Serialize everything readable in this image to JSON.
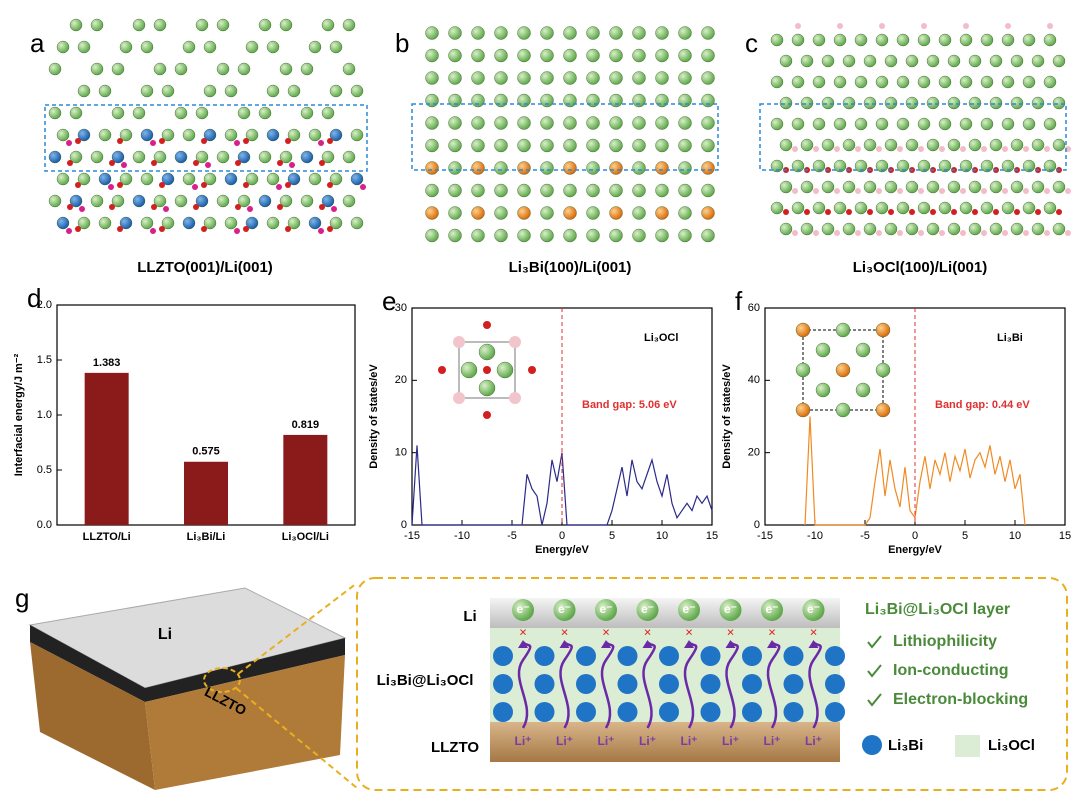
{
  "structures": [
    {
      "panel": "a",
      "caption": "LLZTO(001)/Li(001)"
    },
    {
      "panel": "b",
      "caption": "Li₃Bi(100)/Li(001)"
    },
    {
      "panel": "c",
      "caption": "Li₃OCl(100)/Li(001)"
    }
  ],
  "chart_data": [
    {
      "type": "bar",
      "panel": "d",
      "y_label": "Interfacial energy/J m⁻²",
      "categories": [
        "LLZTO/Li",
        "Li₃Bi/Li",
        "Li₃OCl/Li"
      ],
      "values": [
        1.383,
        0.575,
        0.819
      ],
      "color": "#8b1a1a",
      "ylim": [
        0,
        2.0
      ],
      "yticks": [
        {
          "value": 0,
          "label": "0.0"
        },
        0.5,
        {
          "value": 1.0,
          "label": "1.0"
        },
        1.5,
        {
          "value": 2.0,
          "label": "2.0"
        }
      ]
    },
    {
      "type": "line",
      "panel": "e",
      "x_label": "Energy/eV",
      "y_label": "Density of states/eV",
      "annotations": [
        "Li₃OCl",
        "Band gap: 5.06 eV"
      ],
      "color": "#2a2a8a",
      "x": [
        -15,
        -14.5,
        -14,
        -13.5,
        -13,
        -12.5,
        -12,
        -11.5,
        -11,
        -10.5,
        -10,
        -9.5,
        -9,
        -8.5,
        -8,
        -7.5,
        -7,
        -6.5,
        -6,
        -5.5,
        -5,
        -4.5,
        -4,
        -3.5,
        -3,
        -2.5,
        -2,
        -1.5,
        -1,
        -0.5,
        0,
        0.5,
        1,
        1.5,
        2,
        2.5,
        3,
        3.5,
        4,
        4.5,
        5,
        5.5,
        6,
        6.5,
        7,
        7.5,
        8,
        8.5,
        9,
        9.5,
        10,
        10.5,
        11,
        11.5,
        12,
        12.5,
        13,
        13.5,
        14,
        14.5,
        15
      ],
      "values": [
        0,
        11,
        0,
        0,
        0,
        0,
        0,
        0,
        0,
        0,
        0,
        0,
        0,
        0,
        0,
        0,
        0,
        0,
        0,
        0,
        0,
        0,
        0,
        7,
        5,
        4,
        0,
        3,
        9,
        6,
        10,
        0,
        0,
        0,
        0,
        0,
        0,
        0,
        0,
        0,
        2,
        5,
        8,
        4,
        9,
        6,
        5,
        7,
        9,
        6,
        4,
        7,
        3,
        1,
        2,
        3,
        2,
        4,
        3,
        4,
        2
      ],
      "xlim": [
        -15,
        15
      ],
      "xticks": [
        -15,
        -10,
        -5,
        0,
        5,
        10,
        15
      ],
      "ylim": [
        0,
        30
      ],
      "yticks": [
        0,
        10,
        20,
        30
      ]
    },
    {
      "type": "line",
      "panel": "f",
      "x_label": "Energy/eV",
      "y_label": "Density of states/eV",
      "annotations": [
        "Li₃Bi",
        "Band gap: 0.44 eV"
      ],
      "color": "#f08a24",
      "x": [
        -11,
        -10.5,
        -10,
        -9.5,
        -9,
        -8.5,
        -8,
        -7.5,
        -7,
        -6.5,
        -6,
        -5.5,
        -5,
        -4.5,
        -4,
        -3.5,
        -3,
        -2.5,
        -2,
        -1.5,
        -1,
        -0.5,
        0,
        0.5,
        1,
        1.5,
        2,
        2.5,
        3,
        3.5,
        4,
        4.5,
        5,
        5.5,
        6,
        6.5,
        7,
        7.5,
        8,
        8.5,
        9,
        9.5,
        10,
        10.5,
        11
      ],
      "values": [
        0,
        30,
        0,
        0,
        0,
        0,
        0,
        0,
        0,
        0,
        0,
        0,
        0,
        2,
        12,
        21,
        8,
        18,
        10,
        5,
        16,
        4,
        2,
        12,
        19,
        10,
        18,
        14,
        20,
        12,
        19,
        15,
        21,
        13,
        18,
        20,
        16,
        22,
        14,
        19,
        12,
        18,
        10,
        14,
        0
      ],
      "xlim": [
        -15,
        15
      ],
      "xticks": [
        -15,
        -10,
        -5,
        0,
        5,
        10,
        15
      ],
      "ylim": [
        0,
        60
      ],
      "yticks": [
        0,
        20,
        40,
        60
      ]
    }
  ],
  "schematic": {
    "panel": "g",
    "block_top": "Li",
    "block_bottom": "LLZTO",
    "layer_labels": [
      "Li",
      "Li₃Bi@Li₃OCl",
      "LLZTO"
    ],
    "electron": "e⁻",
    "ion": "Li⁺",
    "title": "Li₃Bi@Li₃OCl layer",
    "features": [
      "Lithiophilicity",
      "Ion-conducting",
      "Electron-blocking"
    ],
    "legend": [
      "Li₃Bi",
      "Li₃OCl"
    ]
  }
}
